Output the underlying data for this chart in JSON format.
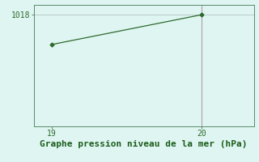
{
  "x": [
    19,
    20
  ],
  "y": [
    1016.8,
    1018.0
  ],
  "line_color": "#2d6a2d",
  "marker": "D",
  "marker_size": 2.5,
  "vline_x": 20,
  "vline_color": "#b0a0a8",
  "background_color": "#dff5f2",
  "hline_color": "#b8ccc8",
  "xlabel": "Graphe pression niveau de la mer (hPa)",
  "xlabel_color": "#1a5c1a",
  "xlabel_fontsize": 8,
  "ytick_label": "1018",
  "ytick_value": 1018,
  "xtick_values": [
    19,
    20
  ],
  "ylim": [
    1013.5,
    1018.4
  ],
  "xlim": [
    18.88,
    20.35
  ],
  "tick_color": "#2d6a2d",
  "tick_fontsize": 7,
  "spine_color": "#5a8a6a",
  "bottom_strip_color": "#c8e8e0"
}
